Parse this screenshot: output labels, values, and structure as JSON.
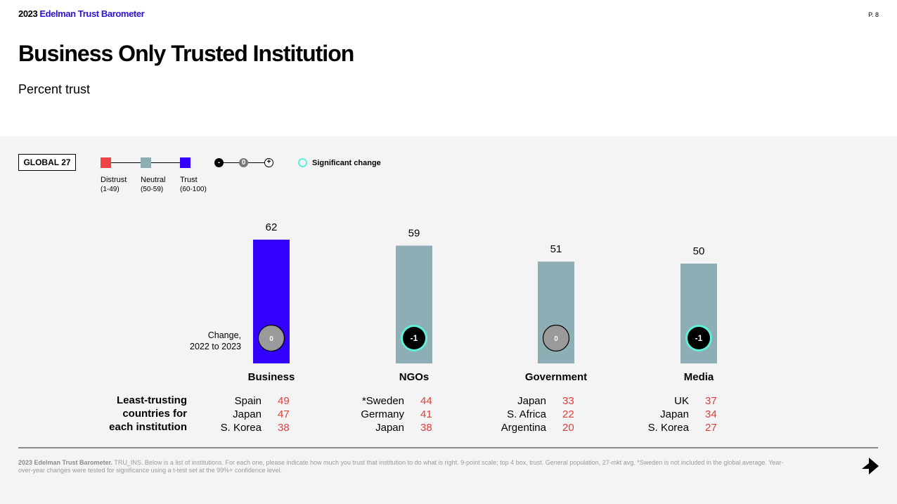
{
  "header": {
    "brand_year": "2023",
    "brand_name": "Edelman Trust Barometer",
    "page": "P. 8"
  },
  "title": "Business Only Trusted Institution",
  "subtitle": "Percent trust",
  "badge": "GLOBAL 27",
  "legend": {
    "scale": [
      {
        "label": "Distrust",
        "range": "(1-49)",
        "color": "#ee4444"
      },
      {
        "label": "Neutral",
        "range": "(50-59)",
        "color": "#8eaeb6"
      },
      {
        "label": "Trust",
        "range": "(60-100)",
        "color": "#3300ff"
      }
    ],
    "change_markers": [
      "-",
      "0",
      "+"
    ],
    "significant_label": "Significant change",
    "significant_color": "#5ff0d8"
  },
  "change_label_line1": "Change,",
  "change_label_line2": "2022 to 2023",
  "least_trusting_label": [
    "Least-trusting",
    "countries for",
    "each institution"
  ],
  "chart_data": {
    "type": "bar",
    "categories": [
      "Business",
      "NGOs",
      "Government",
      "Media"
    ],
    "values": [
      62,
      59,
      51,
      50
    ],
    "changes": [
      "0",
      "-1",
      "0",
      "-1"
    ],
    "significant": [
      false,
      true,
      false,
      true
    ],
    "bar_colors": [
      "#3300ff",
      "#8eaeb6",
      "#8eaeb6",
      "#8eaeb6"
    ],
    "least_trusting": [
      [
        {
          "country": "Spain",
          "value": 49
        },
        {
          "country": "Japan",
          "value": 47
        },
        {
          "country": "S. Korea",
          "value": 38
        }
      ],
      [
        {
          "country": "*Sweden",
          "value": 44
        },
        {
          "country": "Germany",
          "value": 41
        },
        {
          "country": "Japan",
          "value": 38
        }
      ],
      [
        {
          "country": "Japan",
          "value": 33
        },
        {
          "country": "S. Africa",
          "value": 22
        },
        {
          "country": "Argentina",
          "value": 20
        }
      ],
      [
        {
          "country": "UK",
          "value": 37
        },
        {
          "country": "Japan",
          "value": 34
        },
        {
          "country": "S. Korea",
          "value": 27
        }
      ]
    ],
    "value_color_distrust": "#e03c3c"
  },
  "footnote_bold": "2023 Edelman Trust Barometer.",
  "footnote": "TRU_INS. Below is a list of institutions. For each one, please indicate how much you trust that institution to do what is right. 9-point scale; top 4 box, trust. General population, 27-mkt avg. *Sweden is not included in the global average. Year-over-year changes were tested for significance using a t-test set at the 99%+ confidence level."
}
